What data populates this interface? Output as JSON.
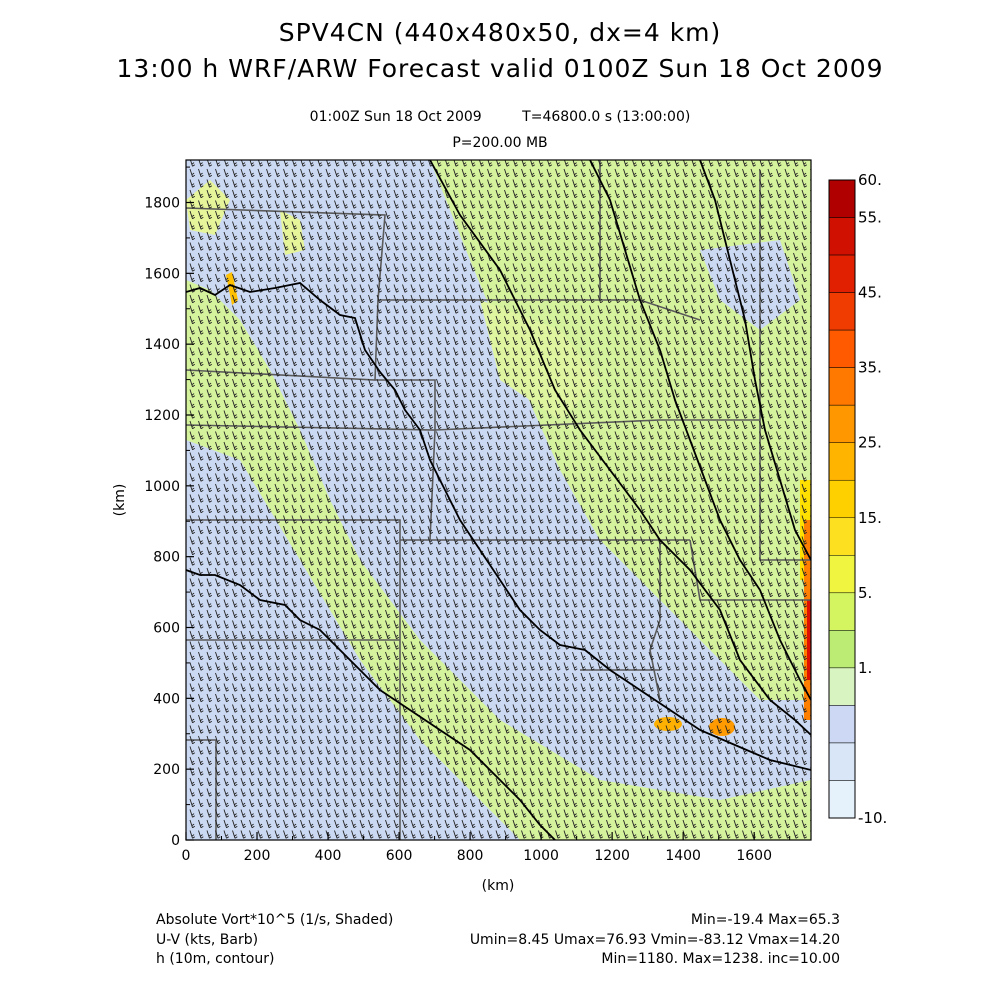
{
  "header": {
    "title_line1": "SPV4CN (440x480x50, dx=4 km)",
    "title_line2": "13:00 h WRF/ARW Forecast valid 0100Z Sun 18 Oct 2009",
    "valid_time": "01:00Z Sun 18 Oct 2009",
    "sim_time": "T=46800.0 s (13:00:00)",
    "level": "P=200.00 MB"
  },
  "axes": {
    "x_label": "(km)",
    "y_label": "(km)",
    "x_ticks": [
      "0",
      "200",
      "400",
      "600",
      "800",
      "1000",
      "1200",
      "1400",
      "1600"
    ],
    "y_ticks": [
      "0",
      "200",
      "400",
      "600",
      "800",
      "1000",
      "1200",
      "1400",
      "1600",
      "1800"
    ],
    "x_range_km": [
      0,
      1760
    ],
    "y_range_km": [
      0,
      1920
    ]
  },
  "colorbar": {
    "labels": [
      "60.",
      "55.",
      "45.",
      "35.",
      "25.",
      "15.",
      "5.",
      "1.",
      "-10."
    ],
    "colors": [
      "#b00000",
      "#d01000",
      "#e02000",
      "#f03c00",
      "#ff5a00",
      "#ff7800",
      "#ff9800",
      "#ffb400",
      "#ffd000",
      "#fde020",
      "#f0f540",
      "#d4f560",
      "#bcec74",
      "#d8f4c0",
      "#ccd8f4",
      "#d8e6f8",
      "#e6f2fb"
    ]
  },
  "footer": {
    "left": [
      "Absolute Vort*10^5 (1/s, Shaded)",
      "U-V (kts, Barb)",
      "h (10m, contour)"
    ],
    "right": [
      "Min=-19.4 Max=65.3",
      "Umin=8.45 Umax=76.93 Vmin=-83.12 Vmax=14.20",
      "Min=1180. Max=1238. inc=10.00"
    ]
  }
}
